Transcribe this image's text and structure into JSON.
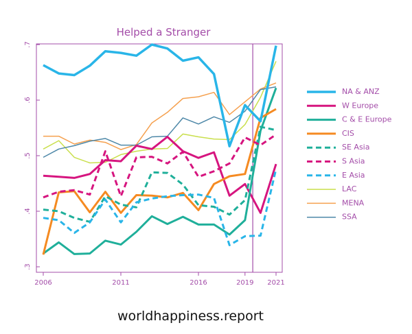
{
  "chart_data": {
    "type": "line",
    "title": "Helped a Stranger",
    "xlabel": "",
    "ylabel": "",
    "xlim": [
      2006,
      2021
    ],
    "ylim": [
      0.3,
      0.7
    ],
    "x_ticks": [
      2006,
      2011,
      2016,
      2019,
      2021
    ],
    "x_tick_labels": [
      "2006",
      "2011",
      "2016",
      "2019",
      "2021"
    ],
    "y_ticks": [
      0.3,
      0.4,
      0.5,
      0.6,
      0.7
    ],
    "y_tick_labels": [
      ".3",
      ".4",
      ".5",
      ".6",
      ".7"
    ],
    "reference_line_x": 2019.5,
    "grid": false,
    "legend_position": "right",
    "x": [
      2006,
      2007,
      2008,
      2009,
      2010,
      2011,
      2012,
      2013,
      2014,
      2015,
      2016,
      2017,
      2018,
      2019,
      2020,
      2021
    ],
    "series": [
      {
        "name": "NA & ANZ",
        "color": "#29b5e8",
        "style": "solid",
        "width": 3.5,
        "values": [
          0.663,
          0.648,
          0.645,
          0.662,
          0.688,
          0.685,
          0.68,
          0.7,
          0.693,
          0.671,
          0.677,
          0.647,
          0.517,
          0.591,
          0.562,
          0.698
        ]
      },
      {
        "name": "W Europe",
        "color": "#d6157f",
        "style": "solid",
        "width": 3,
        "values": [
          0.464,
          0.462,
          0.46,
          0.467,
          0.492,
          0.49,
          0.518,
          0.512,
          0.534,
          0.508,
          0.496,
          0.506,
          0.428,
          0.449,
          0.397,
          0.485
        ]
      },
      {
        "name": "C & E Europe",
        "color": "#1faf9a",
        "style": "solid",
        "width": 3,
        "values": [
          0.324,
          0.344,
          0.323,
          0.324,
          0.347,
          0.34,
          0.363,
          0.391,
          0.377,
          0.39,
          0.376,
          0.376,
          0.358,
          0.384,
          0.545,
          0.622
        ]
      },
      {
        "name": "CIS",
        "color": "#f58a21",
        "style": "solid",
        "width": 3,
        "values": [
          0.322,
          0.434,
          0.436,
          0.398,
          0.435,
          0.397,
          0.429,
          0.428,
          0.425,
          0.433,
          0.402,
          0.449,
          0.463,
          0.467,
          0.568,
          0.584
        ]
      },
      {
        "name": "SE Asia",
        "color": "#1faf9a",
        "style": "dashed",
        "width": 3,
        "values": [
          0.403,
          0.4,
          0.388,
          0.381,
          0.427,
          0.412,
          0.407,
          0.47,
          0.469,
          0.448,
          0.411,
          0.408,
          0.394,
          0.42,
          0.552,
          0.546
        ]
      },
      {
        "name": "S Asia",
        "color": "#d6157f",
        "style": "dashed",
        "width": 3,
        "values": [
          0.425,
          0.435,
          0.438,
          0.43,
          0.508,
          0.427,
          0.497,
          0.498,
          0.486,
          0.507,
          0.462,
          0.472,
          0.486,
          0.533,
          0.519,
          0.538
        ]
      },
      {
        "name": "E Asia",
        "color": "#29b5e8",
        "style": "dashed",
        "width": 3,
        "values": [
          0.388,
          0.384,
          0.361,
          0.38,
          0.421,
          0.38,
          0.416,
          0.423,
          0.427,
          0.429,
          0.43,
          0.424,
          0.339,
          0.355,
          0.356,
          0.476
        ]
      },
      {
        "name": "LAC",
        "color": "#c9df4c",
        "style": "solid",
        "width": 1.5,
        "values": [
          0.512,
          0.527,
          0.497,
          0.487,
          0.488,
          0.502,
          0.508,
          0.512,
          0.513,
          0.539,
          0.534,
          0.53,
          0.529,
          0.556,
          0.605,
          0.67
        ]
      },
      {
        "name": "MENA",
        "color": "#f5a04e",
        "style": "solid",
        "width": 1.5,
        "values": [
          0.535,
          0.535,
          0.521,
          0.528,
          0.524,
          0.511,
          0.52,
          0.559,
          0.578,
          0.603,
          0.606,
          0.614,
          0.574,
          0.597,
          0.62,
          0.631
        ]
      },
      {
        "name": "SSA",
        "color": "#4e88a8",
        "style": "solid",
        "width": 1.5,
        "values": [
          0.497,
          0.512,
          0.518,
          0.526,
          0.531,
          0.519,
          0.519,
          0.534,
          0.535,
          0.568,
          0.557,
          0.57,
          0.56,
          0.58,
          0.619,
          0.624
        ]
      }
    ]
  },
  "source": "worldhappiness.report"
}
